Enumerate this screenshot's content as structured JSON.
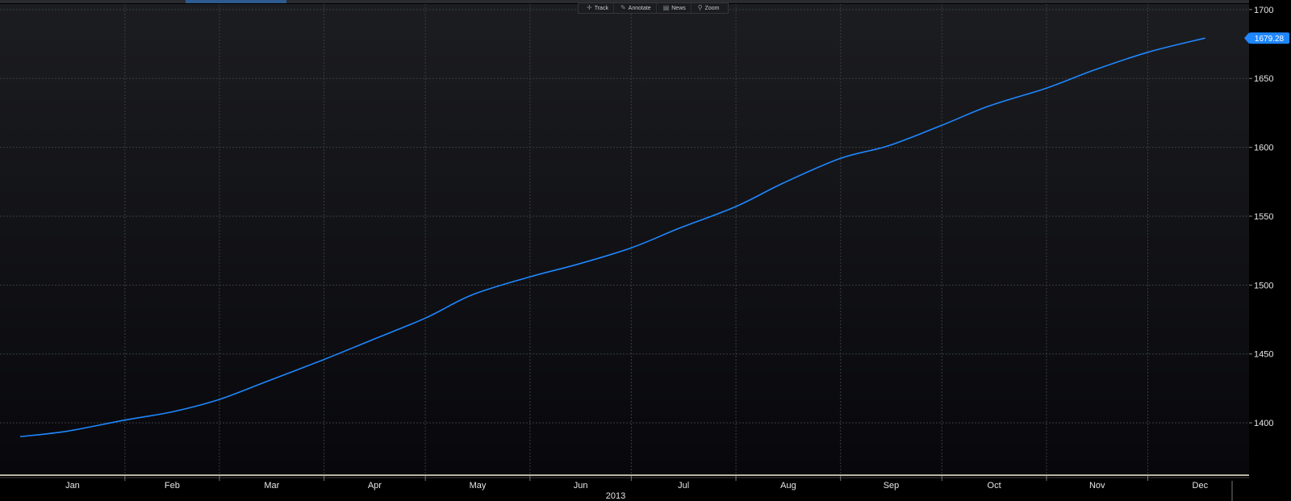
{
  "toolbar": {
    "track_label": "Track",
    "annotate_label": "Annotate",
    "news_label": "News",
    "zoom_label": "Zoom"
  },
  "chart_data": {
    "type": "line",
    "title": "",
    "xlabel": "2013",
    "ylabel": "",
    "x_ticks": [
      "Jan",
      "Feb",
      "Mar",
      "Apr",
      "May",
      "Jun",
      "Jul",
      "Aug",
      "Sep",
      "Oct",
      "Nov",
      "Dec"
    ],
    "y_ticks": [
      1400,
      1450,
      1500,
      1550,
      1600,
      1650,
      1700
    ],
    "ylim": [
      1362,
      1704
    ],
    "grid": true,
    "last_value_label": "1679.28",
    "colors": {
      "line": "#1f87ff",
      "background_top": "#1c1d21",
      "background_bottom": "#08080c",
      "grid": "#3a3c42",
      "axis_text": "#e6e6e6",
      "last_value_bg": "#1f87ff"
    },
    "series": [
      {
        "x": [
          "2013-01-01",
          "2013-01-15",
          "2013-02-01",
          "2013-02-15",
          "2013-03-01",
          "2013-03-15",
          "2013-04-01",
          "2013-04-15",
          "2013-05-01",
          "2013-05-15",
          "2013-06-01",
          "2013-06-15",
          "2013-07-01",
          "2013-07-15",
          "2013-08-01",
          "2013-08-15",
          "2013-09-01",
          "2013-09-15",
          "2013-10-01",
          "2013-10-15",
          "2013-11-01",
          "2013-11-15",
          "2013-12-01",
          "2013-12-18"
        ],
        "values": [
          1390,
          1394,
          1402,
          1408,
          1417,
          1430,
          1446,
          1460,
          1476,
          1493,
          1506,
          1515,
          1527,
          1541,
          1557,
          1574,
          1592,
          1601,
          1616,
          1630,
          1643,
          1656,
          1669,
          1679.28
        ]
      }
    ]
  }
}
